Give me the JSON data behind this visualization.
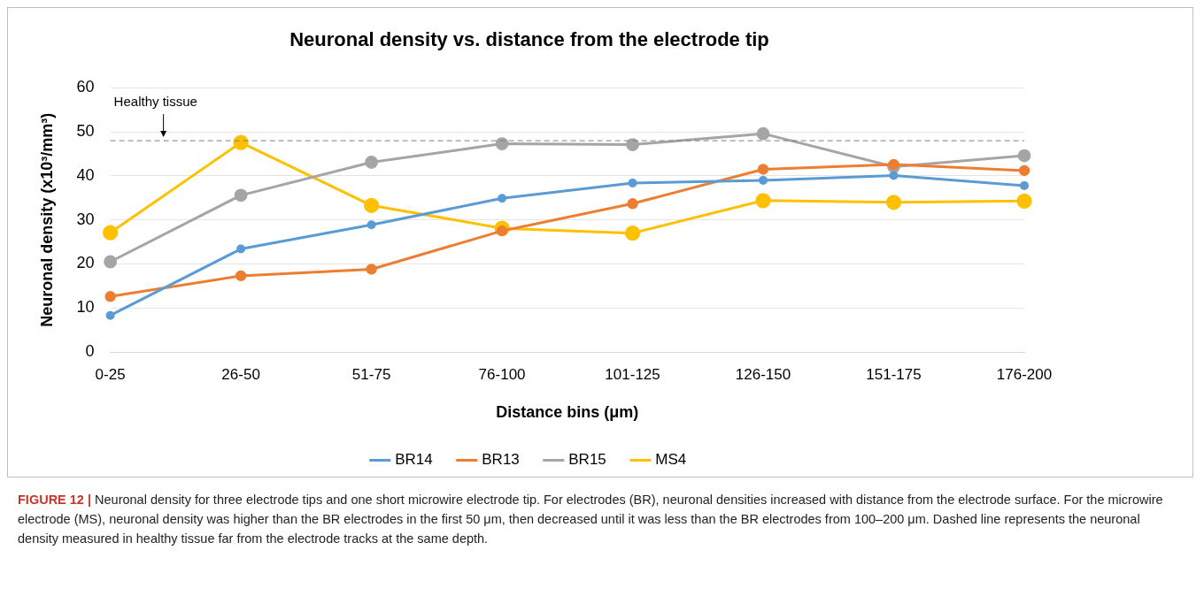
{
  "chart_data": {
    "type": "line",
    "title": "Neuronal density vs. distance from the electrode tip",
    "xlabel": "Distance bins (μm)",
    "ylabel": "Neuronal density (x10³/mm³)",
    "categories": [
      "0-25",
      "26-50",
      "51-75",
      "76-100",
      "101-125",
      "126-150",
      "151-175",
      "176-200"
    ],
    "series": [
      {
        "name": "BR14",
        "color": "#5b9bd5",
        "values": [
          8.3,
          23.4,
          28.9,
          34.9,
          38.4,
          39,
          40.1,
          37.8
        ]
      },
      {
        "name": "BR13",
        "color": "#ed7d31",
        "values": [
          12.6,
          17.3,
          18.8,
          27.5,
          33.7,
          41.5,
          42.6,
          41.2
        ]
      },
      {
        "name": "BR15",
        "color": "#a5a5a5",
        "values": [
          20.5,
          35.6,
          43.1,
          47.3,
          47.1,
          49.6,
          42.1,
          44.6
        ]
      },
      {
        "name": "MS4",
        "color": "#ffc000",
        "values": [
          27.1,
          47.6,
          33.3,
          28.1,
          27,
          34.4,
          34,
          34.3
        ]
      }
    ],
    "ylim": [
      0,
      60
    ],
    "yticks": [
      0,
      10,
      20,
      30,
      40,
      50,
      60
    ],
    "grid": "y",
    "legend": "bottom",
    "marker": "circle",
    "line_style": "solid",
    "ref_lines": [
      {
        "axis": "y",
        "value": 48,
        "label": "Healthy tissue",
        "color": "#7f7f7f",
        "line_style": "dashed"
      }
    ],
    "annotations": [
      "FIGURE 12 |",
      "Neuronal density for three electrode tips and one short microwire electrode tip. For electrodes (BR), neuronal densities increased with distance from the electrode surface. For the microwire electrode (MS), neuronal density was higher than the BR electrodes in the first 50 μm, then decreased until it was less than the BR electrodes from 100–200 μm. Dashed line represents the neuronal density measured in healthy tissue far from the electrode tracks at the same depth."
    ]
  }
}
